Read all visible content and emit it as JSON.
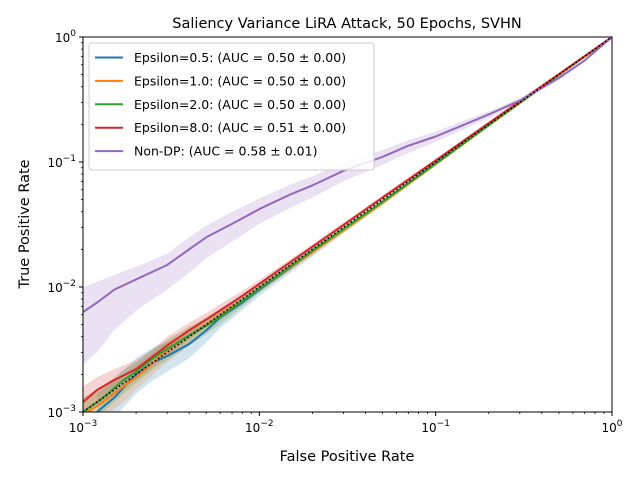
{
  "chart_data": {
    "type": "line",
    "title": "Saliency Variance LiRA Attack, 50 Epochs, SVHN",
    "xlabel": "False Positive Rate",
    "ylabel": "True Positive Rate",
    "xscale": "log",
    "yscale": "log",
    "xlim": [
      0.001,
      1
    ],
    "ylim": [
      0.001,
      1
    ],
    "grid": false,
    "legend_position": "upper-left",
    "x_ticks": [
      {
        "value": 0.001,
        "base": "10",
        "exp": "−3"
      },
      {
        "value": 0.01,
        "base": "10",
        "exp": "−2"
      },
      {
        "value": 0.1,
        "base": "10",
        "exp": "−1"
      },
      {
        "value": 1,
        "base": "10",
        "exp": "0"
      }
    ],
    "y_ticks": [
      {
        "value": 0.001,
        "base": "10",
        "exp": "−3"
      },
      {
        "value": 0.01,
        "base": "10",
        "exp": "−2"
      },
      {
        "value": 0.1,
        "base": "10",
        "exp": "−1"
      },
      {
        "value": 1,
        "base": "10",
        "exp": "0"
      }
    ],
    "reference_line": {
      "color": "#000000",
      "style": "dotted",
      "x": [
        0.001,
        1
      ],
      "y": [
        0.001,
        1
      ]
    },
    "series": [
      {
        "name": "Epsilon=0.5: (AUC = 0.50 ± 0.00)",
        "color": "#1f77b4",
        "x": [
          0.0012,
          0.0015,
          0.002,
          0.0025,
          0.003,
          0.004,
          0.005,
          0.006,
          0.008,
          0.01,
          0.02,
          0.05,
          0.1,
          0.2,
          0.5,
          1.0
        ],
        "y": [
          0.001,
          0.0013,
          0.002,
          0.0025,
          0.0028,
          0.0035,
          0.0045,
          0.0057,
          0.0075,
          0.0095,
          0.019,
          0.048,
          0.098,
          0.198,
          0.5,
          1.0
        ],
        "lower": [
          0.0007,
          0.0009,
          0.0014,
          0.0018,
          0.0021,
          0.0027,
          0.0036,
          0.0047,
          0.0065,
          0.0085,
          0.0175,
          0.046,
          0.095,
          0.195,
          0.495,
          1.0
        ],
        "upper": [
          0.0014,
          0.0018,
          0.0027,
          0.0033,
          0.0036,
          0.0044,
          0.0054,
          0.0066,
          0.0085,
          0.0105,
          0.0205,
          0.05,
          0.101,
          0.201,
          0.505,
          1.0
        ]
      },
      {
        "name": "Epsilon=1.0: (AUC = 0.50 ± 0.00)",
        "color": "#ff7f0e",
        "x": [
          0.001,
          0.0013,
          0.0017,
          0.002,
          0.0025,
          0.003,
          0.004,
          0.005,
          0.006,
          0.008,
          0.01,
          0.02,
          0.05,
          0.1,
          0.2,
          0.5,
          1.0
        ],
        "y": [
          0.00095,
          0.0012,
          0.0016,
          0.0019,
          0.0025,
          0.0031,
          0.0041,
          0.005,
          0.006,
          0.0078,
          0.0097,
          0.019,
          0.047,
          0.096,
          0.196,
          0.497,
          1.0
        ],
        "lower": [
          0.0007,
          0.0009,
          0.0012,
          0.0015,
          0.002,
          0.0025,
          0.0034,
          0.0043,
          0.0053,
          0.0071,
          0.009,
          0.018,
          0.045,
          0.093,
          0.193,
          0.492,
          1.0
        ],
        "upper": [
          0.0013,
          0.0016,
          0.002,
          0.0024,
          0.003,
          0.0037,
          0.0048,
          0.0057,
          0.0067,
          0.0085,
          0.0104,
          0.02,
          0.049,
          0.099,
          0.199,
          0.502,
          1.0
        ]
      },
      {
        "name": "Epsilon=2.0: (AUC = 0.50 ± 0.00)",
        "color": "#2ca02c",
        "x": [
          0.001,
          0.0013,
          0.0017,
          0.002,
          0.0025,
          0.003,
          0.004,
          0.005,
          0.006,
          0.008,
          0.01,
          0.02,
          0.05,
          0.1,
          0.2,
          0.5,
          1.0
        ],
        "y": [
          0.001,
          0.0013,
          0.0018,
          0.0021,
          0.0027,
          0.0032,
          0.0041,
          0.0049,
          0.0058,
          0.0077,
          0.0097,
          0.0195,
          0.048,
          0.097,
          0.197,
          0.498,
          1.0
        ],
        "lower": [
          0.0007,
          0.001,
          0.0014,
          0.0017,
          0.0022,
          0.0026,
          0.0034,
          0.0042,
          0.005,
          0.0069,
          0.009,
          0.0185,
          0.046,
          0.094,
          0.194,
          0.493,
          1.0
        ],
        "upper": [
          0.0013,
          0.0016,
          0.0022,
          0.0025,
          0.0032,
          0.0038,
          0.0048,
          0.0056,
          0.0066,
          0.0085,
          0.0104,
          0.0205,
          0.05,
          0.1,
          0.2,
          0.503,
          1.0
        ]
      },
      {
        "name": "Epsilon=8.0: (AUC = 0.51 ± 0.00)",
        "color": "#d62728",
        "x": [
          0.001,
          0.0012,
          0.0015,
          0.002,
          0.0025,
          0.003,
          0.004,
          0.005,
          0.006,
          0.008,
          0.01,
          0.02,
          0.05,
          0.1,
          0.2,
          0.5,
          1.0
        ],
        "y": [
          0.0012,
          0.0015,
          0.0018,
          0.0022,
          0.0028,
          0.0034,
          0.0045,
          0.0055,
          0.0065,
          0.0085,
          0.0106,
          0.021,
          0.052,
          0.103,
          0.205,
          0.505,
          1.0
        ],
        "lower": [
          0.0009,
          0.0011,
          0.0014,
          0.0018,
          0.0023,
          0.0028,
          0.0038,
          0.0048,
          0.0057,
          0.0077,
          0.0098,
          0.02,
          0.05,
          0.1,
          0.2,
          0.5,
          1.0
        ],
        "upper": [
          0.0016,
          0.0019,
          0.0022,
          0.0026,
          0.0032,
          0.004,
          0.0052,
          0.0062,
          0.0073,
          0.0093,
          0.0114,
          0.022,
          0.054,
          0.106,
          0.21,
          0.51,
          1.0
        ]
      },
      {
        "name": "Non-DP: (AUC = 0.58 ± 0.01)",
        "color": "#9467bd",
        "x": [
          0.001,
          0.0012,
          0.0015,
          0.002,
          0.003,
          0.004,
          0.005,
          0.007,
          0.01,
          0.015,
          0.02,
          0.03,
          0.05,
          0.07,
          0.1,
          0.2,
          0.3,
          0.5,
          0.7,
          1.0
        ],
        "y": [
          0.0063,
          0.0075,
          0.0095,
          0.0115,
          0.015,
          0.02,
          0.025,
          0.032,
          0.042,
          0.055,
          0.065,
          0.085,
          0.11,
          0.135,
          0.16,
          0.24,
          0.31,
          0.47,
          0.65,
          1.0
        ],
        "lower": [
          0.0024,
          0.003,
          0.0045,
          0.0065,
          0.0095,
          0.013,
          0.017,
          0.023,
          0.032,
          0.043,
          0.052,
          0.07,
          0.095,
          0.118,
          0.145,
          0.225,
          0.295,
          0.455,
          0.635,
          1.0
        ],
        "upper": [
          0.01,
          0.011,
          0.0125,
          0.0145,
          0.0185,
          0.025,
          0.031,
          0.04,
          0.051,
          0.066,
          0.077,
          0.1,
          0.125,
          0.15,
          0.175,
          0.255,
          0.325,
          0.485,
          0.665,
          1.0
        ]
      }
    ]
  }
}
